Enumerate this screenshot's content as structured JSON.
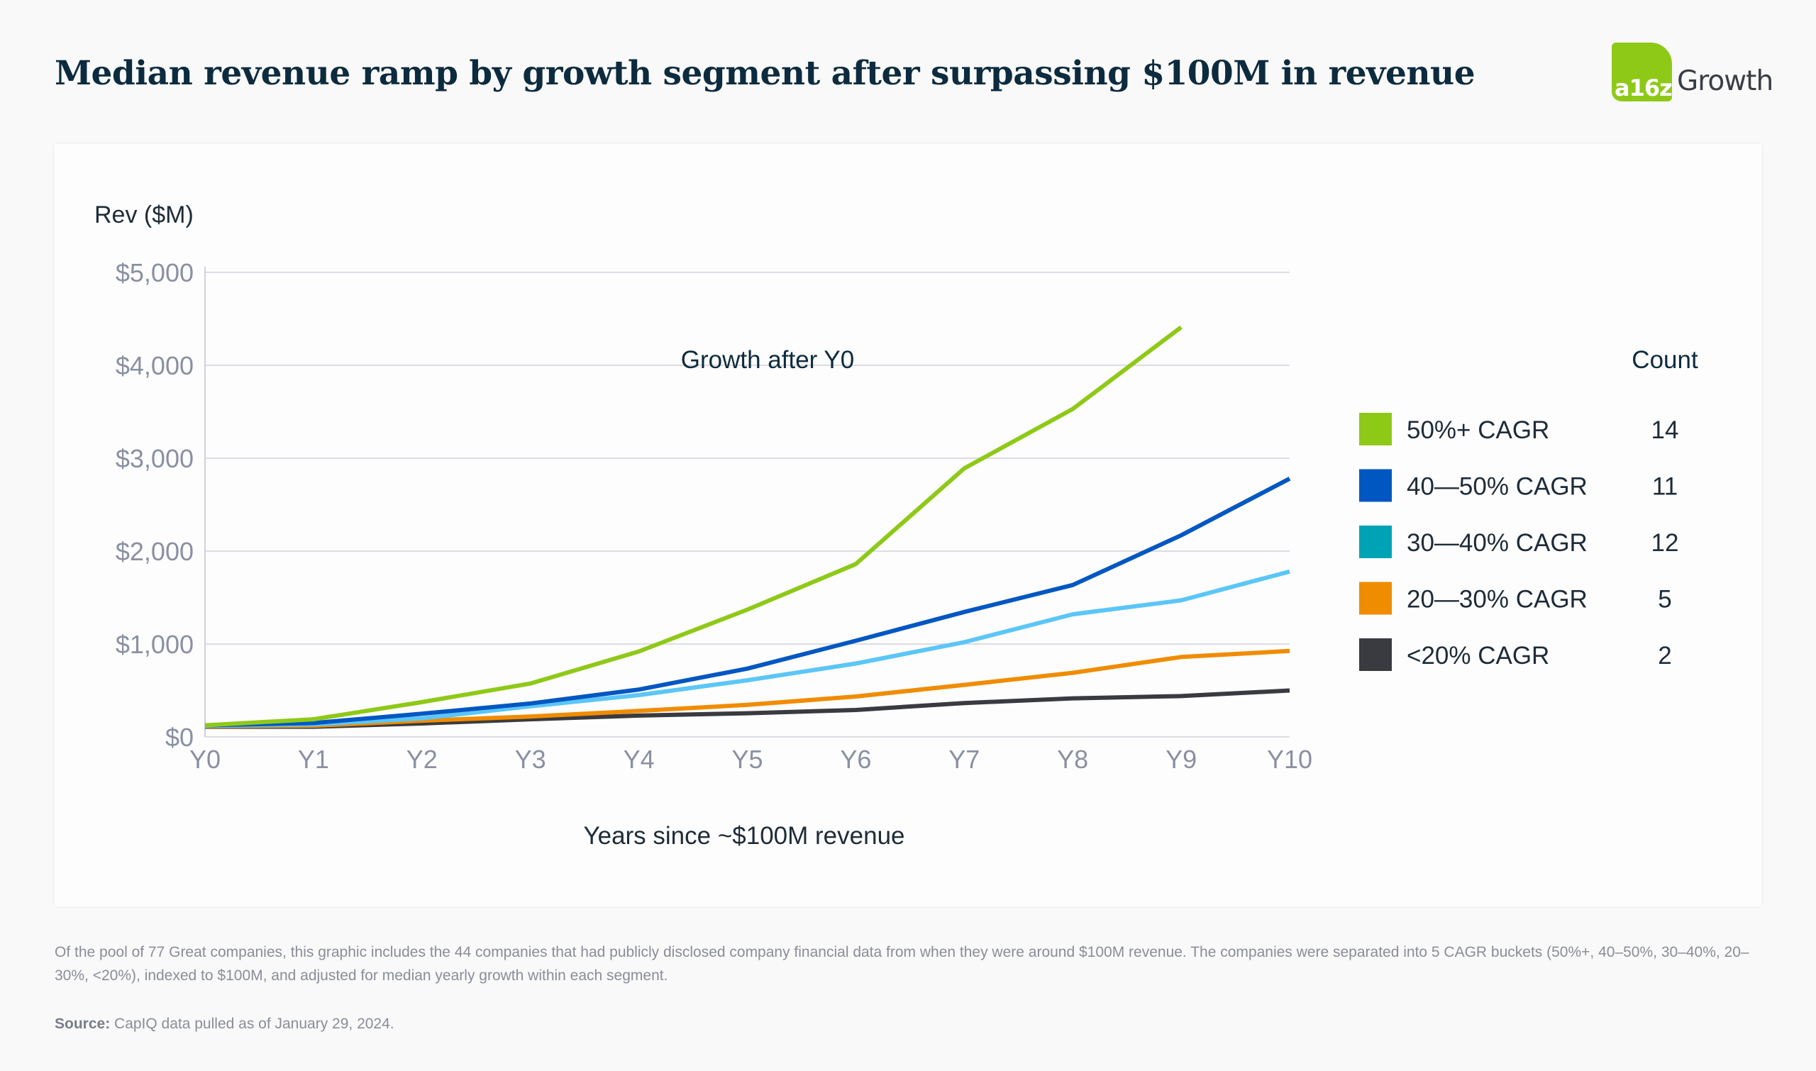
{
  "title": "Median revenue ramp by growth segment after surpassing $100M in revenue",
  "logo": {
    "mark": "a16z",
    "word": "Growth",
    "color": "#8fc918"
  },
  "chart_data": {
    "type": "line",
    "title": "Median revenue ramp by growth segment after surpassing $100M in revenue",
    "ylabel": "Rev ($M)",
    "xlabel": "Years since ~$100M revenue",
    "categories": [
      "Y0",
      "Y1",
      "Y2",
      "Y3",
      "Y4",
      "Y5",
      "Y6",
      "Y7",
      "Y8",
      "Y9",
      "Y10"
    ],
    "ylim": [
      0,
      5000
    ],
    "yticks": [
      0,
      1000,
      2000,
      3000,
      4000,
      5000
    ],
    "ytick_labels": [
      "$0",
      "$1,000",
      "$2,000",
      "$3,000",
      "$4,000",
      "$5,000"
    ],
    "grid": true,
    "legend_position": "right",
    "legend_header": {
      "group": "Growth after Y0",
      "count": "Count"
    },
    "series": [
      {
        "name": "50%+ CAGR",
        "count": "14",
        "color": "#8fc918",
        "swatch": "#8fc918",
        "values": [
          125,
          190,
          375,
          575,
          920,
          1370,
          1860,
          2890,
          3530,
          4410,
          null
        ]
      },
      {
        "name": "40—50% CAGR",
        "count": "11",
        "color": "#0057c2",
        "swatch": "#0057c2",
        "values": [
          125,
          150,
          250,
          360,
          510,
          735,
          1035,
          1345,
          1635,
          2170,
          2780
        ]
      },
      {
        "name": "30—40% CAGR",
        "count": "12",
        "color": "#5bc6f7",
        "swatch": "#00a3b5",
        "values": [
          120,
          135,
          200,
          330,
          450,
          610,
          790,
          1020,
          1320,
          1470,
          1780
        ]
      },
      {
        "name": "20—30% CAGR",
        "count": "5",
        "color": "#f08c00",
        "swatch": "#f08c00",
        "values": [
          115,
          120,
          175,
          220,
          280,
          345,
          435,
          560,
          690,
          860,
          925
        ]
      },
      {
        "name": "<20% CAGR",
        "count": "2",
        "color": "#3a3b40",
        "swatch": "#3a3b40",
        "values": [
          110,
          110,
          145,
          190,
          230,
          255,
          290,
          365,
          415,
          440,
          500
        ]
      }
    ]
  },
  "footnote": "Of the pool of 77 Great companies, this graphic includes the 44 companies that had publicly disclosed company financial data from when they were around $100M revenue. The companies were separated into 5 CAGR buckets (50%+, 40–50%, 30–40%, 20–30%, <20%), indexed to $100M, and adjusted for median yearly growth within each segment.",
  "source": {
    "label": "Source:",
    "text": " CapIQ data pulled as of January 29, 2024."
  }
}
